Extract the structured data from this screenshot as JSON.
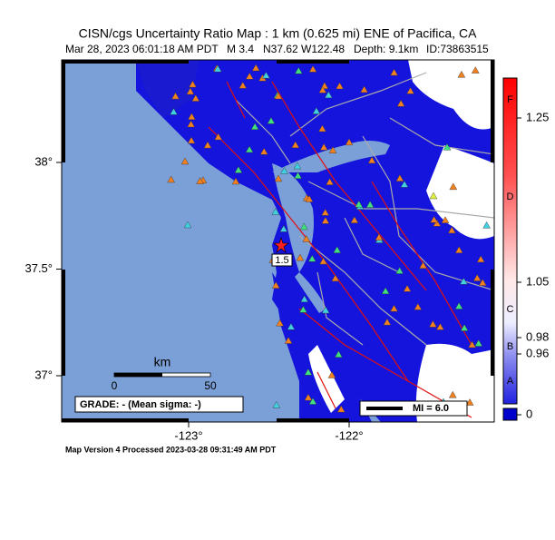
{
  "map": {
    "title": "CISN/cgs Uncertainty Ratio Map : 1 km (0.625 mi) ENE of Pacifica, CA",
    "subtitle": {
      "date": "Mar 28, 2023 06:01:18 AM PDT",
      "magnitude": "M 3.4",
      "location": "N37.62 W122.48",
      "depth": "Depth: 9.1km",
      "id": "ID:73863515"
    },
    "lat_ticks": [
      {
        "value": 38,
        "label": "38°"
      },
      {
        "value": 37.5,
        "label": "37.5°"
      },
      {
        "value": 37,
        "label": "37°"
      }
    ],
    "lon_ticks": [
      {
        "value": -123,
        "label": "-123°"
      },
      {
        "value": -122,
        "label": "-122°"
      }
    ],
    "colorbar": {
      "ticks": [
        "1.25",
        "1.05",
        "0.98",
        "0.96",
        "0"
      ],
      "letters": [
        "F",
        "D",
        "C",
        "B",
        "A"
      ]
    },
    "scale_bar": {
      "unit": "km",
      "labels": [
        "0",
        "50"
      ]
    },
    "grade": "GRADE: - (Mean sigma: -)",
    "mi_legend": "MI = 6.0",
    "epicenter_label": "1.5",
    "footer": "Map Version 4 Processed 2023-03-28 09:31:49 AM PDT"
  }
}
